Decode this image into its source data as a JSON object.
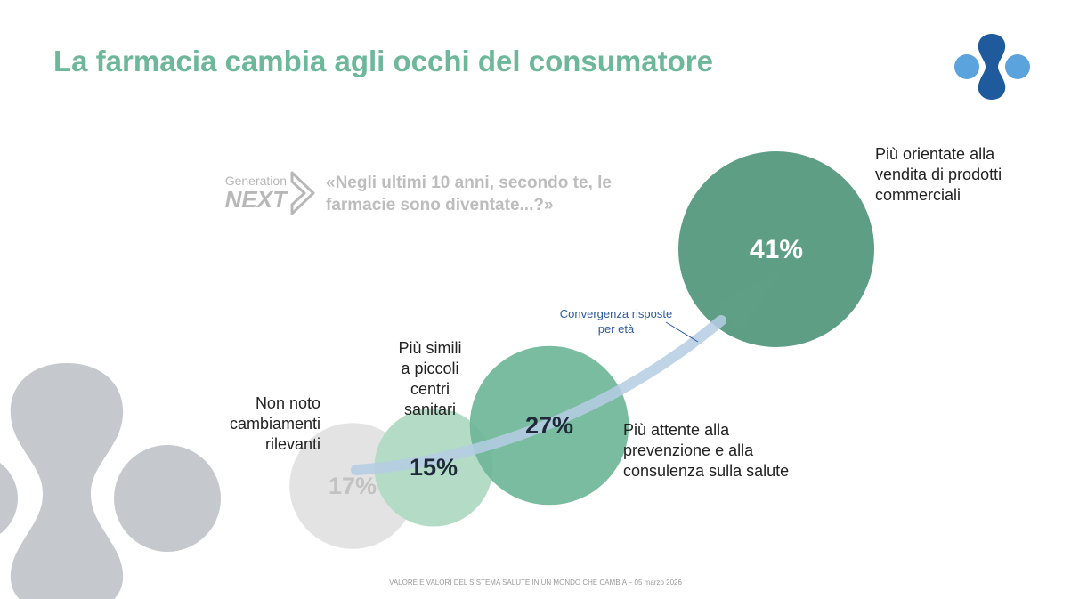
{
  "title": "La farmacia cambia agli occhi del consumatore",
  "generation_logo": {
    "top": "Generation",
    "bottom": "NEXT"
  },
  "question": "«Negli ultimi 10 anni, secondo te, le farmacie sono diventate...?»",
  "footer": "VALORE E VALORI DEL SISTEMA SALUTE IN UN MONDO CHE CAMBIA – 05 marzo 2026",
  "colors": {
    "title": "#6db79a",
    "logo_dark": "#1f5a9c",
    "logo_light": "#5ba3dc",
    "deco_grey": "#c5c9cd",
    "arrow": "#b5cde4"
  },
  "chart_data": {
    "type": "bubble",
    "annotation": "Convergenza risposte per età",
    "items": [
      {
        "label": "Non noto cambiamenti rilevanti",
        "label_lines": [
          "Non noto",
          "cambiamenti",
          "rilevanti"
        ],
        "value": 17,
        "display": "17%",
        "color": "#e3e3e3",
        "text_color": "#c2c2c2"
      },
      {
        "label": "Più simili a piccoli centri sanitari",
        "label_lines": [
          "Più simili",
          "a piccoli",
          "centri",
          "sanitari"
        ],
        "value": 15,
        "display": "15%",
        "color": "#b3dbc6",
        "text_color": "#1e2a3a"
      },
      {
        "label": "Più attente alla prevenzione e alla consulenza sulla salute",
        "label_lines": [
          "Più attente alla",
          "prevenzione e alla",
          "consulenza sulla salute"
        ],
        "value": 27,
        "display": "27%",
        "color": "#6fb697",
        "text_color": "#1e2a3a"
      },
      {
        "label": "Più orientate alla vendita di prodotti commerciali",
        "label_lines": [
          "Più orientate alla",
          "vendita di prodotti",
          "commerciali"
        ],
        "value": 41,
        "display": "41%",
        "color": "#5e9e85",
        "text_color": "#ffffff"
      }
    ]
  }
}
